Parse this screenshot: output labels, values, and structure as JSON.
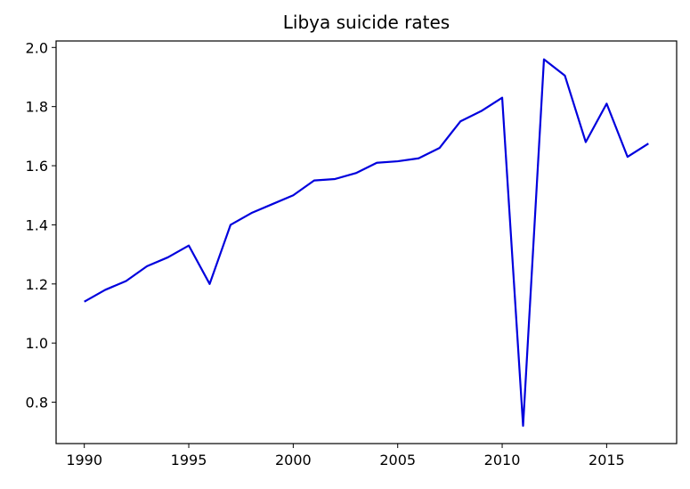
{
  "chart_data": {
    "type": "line",
    "title": "Libya suicide rates",
    "xlabel": "",
    "ylabel": "",
    "xlim": [
      1988.65,
      2018.35
    ],
    "ylim": [
      0.66,
      2.022
    ],
    "grid": false,
    "x_ticks": [
      1990,
      1995,
      2000,
      2005,
      2010,
      2015
    ],
    "y_ticks": [
      0.8,
      1.0,
      1.2,
      1.4,
      1.6,
      1.8,
      2.0
    ],
    "x_tick_labels": [
      "1990",
      "1995",
      "2000",
      "2005",
      "2010",
      "2015"
    ],
    "y_tick_labels": [
      "0.8",
      "1.0",
      "1.2",
      "1.4",
      "1.6",
      "1.8",
      "2.0"
    ],
    "series": [
      {
        "color": "#0000dd",
        "x": [
          1990,
          1991,
          1992,
          1993,
          1994,
          1995,
          1996,
          1997,
          1998,
          1999,
          2000,
          2001,
          2002,
          2003,
          2004,
          2005,
          2006,
          2007,
          2008,
          2009,
          2010,
          2011,
          2012,
          2013,
          2014,
          2015,
          2016,
          2017
        ],
        "values": [
          1.14,
          1.18,
          1.21,
          1.26,
          1.29,
          1.33,
          1.2,
          1.4,
          1.44,
          1.47,
          1.5,
          1.55,
          1.555,
          1.575,
          1.61,
          1.615,
          1.625,
          1.66,
          1.75,
          1.785,
          1.83,
          0.72,
          1.96,
          1.905,
          1.68,
          1.81,
          1.63,
          1.675
        ]
      }
    ]
  }
}
